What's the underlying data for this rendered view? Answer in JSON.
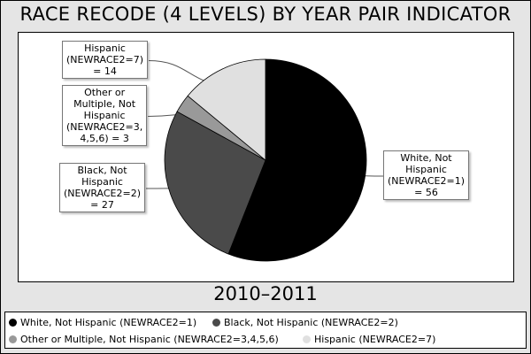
{
  "title": "RACE RECODE (4 LEVELS) BY YEAR PAIR INDICATOR",
  "subtitle": "2010–2011",
  "chart_data": {
    "type": "pie",
    "title": "RACE RECODE (4 LEVELS) BY YEAR PAIR INDICATOR",
    "subtitle": "2010–2011",
    "categories": [
      "White, Not Hispanic (NEWRACE2=1)",
      "Black, Not Hispanic (NEWRACE2=2)",
      "Other or Multiple, Not Hispanic (NEWRACE2=3,4,5,6)",
      "Hispanic (NEWRACE2=7)"
    ],
    "values": [
      56,
      27,
      3,
      14
    ],
    "colors": [
      "#000000",
      "#4a4a4a",
      "#999999",
      "#e0e0e0"
    ],
    "slice_labels": [
      "White, Not\nHispanic\n(NEWRACE2=1)\n= 56",
      "Black, Not\nHispanic\n(NEWRACE2=2)\n= 27",
      "Other or\nMultiple, Not\nHispanic\n(NEWRACE2=3,\n4,5,6) = 3",
      "Hispanic\n(NEWRACE2=7)\n= 14"
    ],
    "legend_position": "bottom"
  },
  "legend": [
    {
      "label": "White, Not Hispanic (NEWRACE2=1)",
      "color": "#000000"
    },
    {
      "label": "Black, Not Hispanic (NEWRACE2=2)",
      "color": "#4a4a4a"
    },
    {
      "label": "Other or Multiple, Not Hispanic (NEWRACE2=3,4,5,6)",
      "color": "#999999"
    },
    {
      "label": "Hispanic (NEWRACE2=7)",
      "color": "#e0e0e0"
    }
  ]
}
